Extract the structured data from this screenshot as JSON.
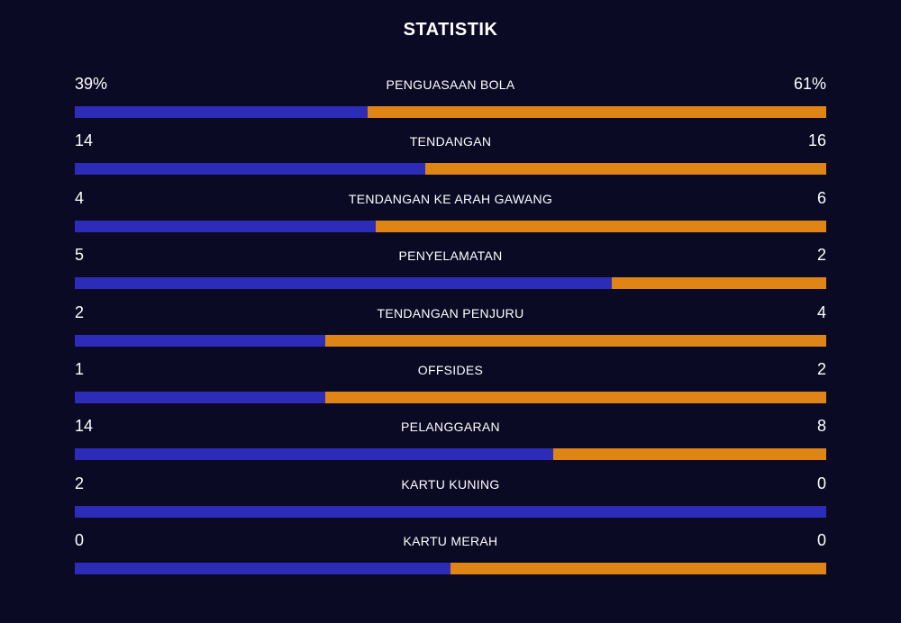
{
  "title": "STATISTIK",
  "colors": {
    "home": "#2c2cb8",
    "away": "#de8516",
    "background": "#0a0a24"
  },
  "stats": [
    {
      "label": "PENGUASAAN BOLA",
      "home": "39%",
      "away": "61%",
      "home_share": 0.39
    },
    {
      "label": "TENDANGAN",
      "home": "14",
      "away": "16",
      "home_share": 0.4667
    },
    {
      "label": "TENDANGAN KE ARAH GAWANG",
      "home": "4",
      "away": "6",
      "home_share": 0.4
    },
    {
      "label": "PENYELAMATAN",
      "home": "5",
      "away": "2",
      "home_share": 0.7143
    },
    {
      "label": "TENDANGAN PENJURU",
      "home": "2",
      "away": "4",
      "home_share": 0.3333
    },
    {
      "label": "OFFSIDES",
      "home": "1",
      "away": "2",
      "home_share": 0.3333
    },
    {
      "label": "PELANGGARAN",
      "home": "14",
      "away": "8",
      "home_share": 0.6364
    },
    {
      "label": "KARTU KUNING",
      "home": "2",
      "away": "0",
      "home_share": 1.0
    },
    {
      "label": "KARTU MERAH",
      "home": "0",
      "away": "0",
      "home_share": 0.5
    }
  ]
}
